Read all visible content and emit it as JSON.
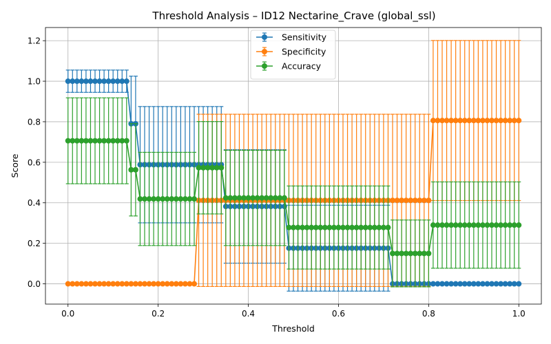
{
  "chart_data": {
    "type": "line",
    "title": "Threshold Analysis – ID12 Nectarine_Crave (global_ssl)",
    "xlabel": "Threshold",
    "ylabel": "Score",
    "xlim": [
      -0.05,
      1.05
    ],
    "ylim": [
      -0.1,
      1.265
    ],
    "x_ticks": [
      0.0,
      0.2,
      0.4,
      0.6,
      0.8,
      1.0
    ],
    "x_tick_labels": [
      "0.0",
      "0.2",
      "0.4",
      "0.6",
      "0.8",
      "1.0"
    ],
    "y_ticks": [
      0.0,
      0.2,
      0.4,
      0.6,
      0.8,
      1.0,
      1.2
    ],
    "y_tick_labels": [
      "0.0",
      "0.2",
      "0.4",
      "0.6",
      "0.8",
      "1.0",
      "1.2"
    ],
    "grid": true,
    "legend_position": "top-center",
    "x_start": 0.0,
    "x_step": 0.01,
    "series": [
      {
        "name": "Sensitivity",
        "color": "#1f77b4",
        "segments": [
          {
            "count": 14,
            "value": 1.0,
            "err": 0.055
          },
          {
            "count": 2,
            "value": 0.79,
            "err": 0.235
          },
          {
            "count": 19,
            "value": 0.588,
            "err": 0.287
          },
          {
            "count": 14,
            "value": 0.382,
            "err": 0.28
          },
          {
            "count": 23,
            "value": 0.176,
            "err": 0.212
          },
          {
            "count": 29,
            "value": 0.0,
            "err": 0.0
          }
        ]
      },
      {
        "name": "Specificity",
        "color": "#ff7f0e",
        "segments": [
          {
            "count": 29,
            "value": 0.0,
            "err": 0.0
          },
          {
            "count": 52,
            "value": 0.412,
            "err": 0.425
          },
          {
            "count": 20,
            "value": 0.806,
            "err": 0.395
          }
        ]
      },
      {
        "name": "Accuracy",
        "color": "#2ca02c",
        "segments": [
          {
            "count": 14,
            "value": 0.706,
            "err": 0.212
          },
          {
            "count": 2,
            "value": 0.563,
            "err": 0.228
          },
          {
            "count": 13,
            "value": 0.419,
            "err": 0.23
          },
          {
            "count": 6,
            "value": 0.573,
            "err": 0.228
          },
          {
            "count": 14,
            "value": 0.424,
            "err": 0.235
          },
          {
            "count": 23,
            "value": 0.278,
            "err": 0.205
          },
          {
            "count": 9,
            "value": 0.15,
            "err": 0.165
          },
          {
            "count": 20,
            "value": 0.29,
            "err": 0.213
          }
        ]
      }
    ]
  }
}
